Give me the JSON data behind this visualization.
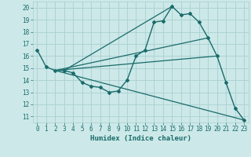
{
  "title": "",
  "xlabel": "Humidex (Indice chaleur)",
  "ylabel": "",
  "background_color": "#cce8e8",
  "grid_color": "#aacfcf",
  "line_color": "#1a6b6b",
  "xlim": [
    -0.5,
    23.5
  ],
  "ylim": [
    10.5,
    20.5
  ],
  "xticks": [
    0,
    1,
    2,
    3,
    4,
    5,
    6,
    7,
    8,
    9,
    10,
    11,
    12,
    13,
    14,
    15,
    16,
    17,
    18,
    19,
    20,
    21,
    22,
    23
  ],
  "yticks": [
    11,
    12,
    13,
    14,
    15,
    16,
    17,
    18,
    19,
    20
  ],
  "figsize": [
    3.2,
    2.0
  ],
  "dpi": 100,
  "series": [
    {
      "x": [
        0,
        1,
        2,
        3,
        4,
        5,
        6,
        7,
        8,
        9,
        10,
        11,
        12,
        13,
        14,
        15,
        16,
        17,
        18,
        19,
        20,
        21,
        22,
        23
      ],
      "y": [
        16.5,
        15.1,
        14.8,
        14.8,
        14.6,
        13.8,
        13.5,
        13.4,
        13.0,
        13.1,
        14.0,
        16.0,
        16.5,
        18.8,
        18.9,
        20.1,
        19.4,
        19.5,
        18.8,
        17.5,
        16.0,
        13.8,
        11.7,
        10.7
      ],
      "marker": "D",
      "markersize": 2.0,
      "linewidth": 1.0
    },
    {
      "x": [
        2,
        23
      ],
      "y": [
        14.8,
        10.7
      ],
      "marker": null,
      "linewidth": 0.9
    },
    {
      "x": [
        2,
        20
      ],
      "y": [
        14.8,
        16.0
      ],
      "marker": null,
      "linewidth": 0.9
    },
    {
      "x": [
        2,
        19
      ],
      "y": [
        14.8,
        17.5
      ],
      "marker": null,
      "linewidth": 0.9
    },
    {
      "x": [
        3,
        15
      ],
      "y": [
        14.8,
        20.1
      ],
      "marker": null,
      "linewidth": 0.9
    }
  ]
}
